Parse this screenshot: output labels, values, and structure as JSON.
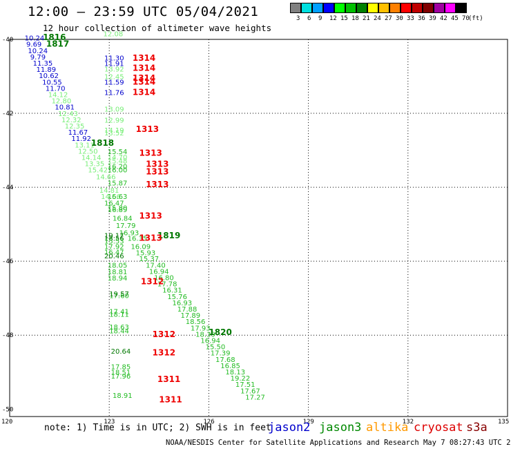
{
  "header": {
    "title": "12:00 – 23:59 UTC 05/04/2021",
    "subtitle": "12 hour collection of altimeter wave heights"
  },
  "legend": {
    "unit_label": "(ft)",
    "bins": [
      {
        "color": "#808080",
        "label": "3"
      },
      {
        "color": "#00e0e0",
        "label": "6"
      },
      {
        "color": "#00a0ff",
        "label": "9"
      },
      {
        "color": "#0000ff",
        "label": "12"
      },
      {
        "color": "#00ff00",
        "label": "15"
      },
      {
        "color": "#00c000",
        "label": "18"
      },
      {
        "color": "#008000",
        "label": "21"
      },
      {
        "color": "#ffff00",
        "label": "24"
      },
      {
        "color": "#ffc000",
        "label": "27"
      },
      {
        "color": "#ff8000",
        "label": "30"
      },
      {
        "color": "#ff0000",
        "label": "33"
      },
      {
        "color": "#c00000",
        "label": "36"
      },
      {
        "color": "#800000",
        "label": "39"
      },
      {
        "color": "#a000a0",
        "label": "42"
      },
      {
        "color": "#ff00ff",
        "label": "45"
      },
      {
        "color": "#000000",
        "label": "70"
      }
    ]
  },
  "map": {
    "lon_labels": [
      "120",
      "123",
      "126",
      "129",
      "132",
      "135"
    ],
    "lat_labels": [
      "-40",
      "-42",
      "-44",
      "-46",
      "-48",
      "-50"
    ],
    "lon_range": [
      120,
      135
    ],
    "lat_range": [
      -40,
      -50.2
    ],
    "gridlines_lon": [
      123,
      126,
      129,
      132
    ],
    "gridlines_lat": [
      -42,
      -44,
      -46,
      -48
    ]
  },
  "colors": {
    "jason2": "#0000cc",
    "jason3": "#009900",
    "light_green": "#77ee77",
    "mid_green": "#22bb22",
    "dark_green": "#007700",
    "red": "#ee0000"
  },
  "observations": [
    {
      "t": "10.24",
      "lon": 120.45,
      "lat": -40.03,
      "c": "jason2"
    },
    {
      "t": "9.69",
      "lon": 120.5,
      "lat": -40.2,
      "c": "jason2"
    },
    {
      "t": "10.24",
      "lon": 120.55,
      "lat": -40.37,
      "c": "jason2"
    },
    {
      "t": "9.79",
      "lon": 120.62,
      "lat": -40.54,
      "c": "jason2"
    },
    {
      "t": "11.35",
      "lon": 120.7,
      "lat": -40.71,
      "c": "jason2"
    },
    {
      "t": "11.89",
      "lon": 120.8,
      "lat": -40.88,
      "c": "jason2"
    },
    {
      "t": "10.62",
      "lon": 120.88,
      "lat": -41.05,
      "c": "jason2"
    },
    {
      "t": "10.55",
      "lon": 120.98,
      "lat": -41.22,
      "c": "jason2"
    },
    {
      "t": "11.70",
      "lon": 121.08,
      "lat": -41.39,
      "c": "jason2"
    },
    {
      "t": "14.12",
      "lon": 121.16,
      "lat": -41.56,
      "c": "light_green"
    },
    {
      "t": "12.80",
      "lon": 121.26,
      "lat": -41.73,
      "c": "light_green"
    },
    {
      "t": "10.81",
      "lon": 121.36,
      "lat": -41.9,
      "c": "jason2"
    },
    {
      "t": "12.43",
      "lon": 121.46,
      "lat": -42.07,
      "c": "light_green"
    },
    {
      "t": "12.32",
      "lon": 121.56,
      "lat": -42.24,
      "c": "light_green"
    },
    {
      "t": "12.35",
      "lon": 121.66,
      "lat": -42.41,
      "c": "light_green"
    },
    {
      "t": "11.67",
      "lon": 121.76,
      "lat": -42.58,
      "c": "jason2"
    },
    {
      "t": "11.92",
      "lon": 121.86,
      "lat": -42.75,
      "c": "jason2"
    },
    {
      "t": "13.11",
      "lon": 121.96,
      "lat": -42.92,
      "c": "light_green"
    },
    {
      "t": "12.50",
      "lon": 122.06,
      "lat": -43.09,
      "c": "light_green"
    },
    {
      "t": "14.14",
      "lon": 122.16,
      "lat": -43.26,
      "c": "light_green"
    },
    {
      "t": "13.35",
      "lon": 122.26,
      "lat": -43.43,
      "c": "light_green"
    },
    {
      "t": "15.42",
      "lon": 122.36,
      "lat": -43.6,
      "c": "light_green"
    },
    {
      "t": "12.08",
      "lon": 122.82,
      "lat": -39.92,
      "c": "light_green"
    },
    {
      "t": "11.30",
      "lon": 122.85,
      "lat": -40.57,
      "c": "jason2"
    },
    {
      "t": "11.91",
      "lon": 122.85,
      "lat": -40.72,
      "c": "jason2"
    },
    {
      "t": "13.92",
      "lon": 122.85,
      "lat": -40.87,
      "c": "light_green"
    },
    {
      "t": "12.45",
      "lon": 122.85,
      "lat": -41.07,
      "c": "light_green"
    },
    {
      "t": "11.59",
      "lon": 122.85,
      "lat": -41.22,
      "c": "jason2"
    },
    {
      "t": "11.76",
      "lon": 122.85,
      "lat": -41.5,
      "c": "jason2"
    },
    {
      "t": "13.09",
      "lon": 122.85,
      "lat": -41.95,
      "c": "light_green"
    },
    {
      "t": "12.99",
      "lon": 122.85,
      "lat": -42.25,
      "c": "light_green"
    },
    {
      "t": "14.19",
      "lon": 122.85,
      "lat": -42.52,
      "c": "light_green"
    },
    {
      "t": "13.52",
      "lon": 122.85,
      "lat": -42.6,
      "c": "light_green"
    },
    {
      "t": "15.54",
      "lon": 122.95,
      "lat": -43.1,
      "c": "mid_green"
    },
    {
      "t": "14.70",
      "lon": 122.95,
      "lat": -43.25,
      "c": "light_green"
    },
    {
      "t": "15.48",
      "lon": 122.95,
      "lat": -43.35,
      "c": "light_green"
    },
    {
      "t": "16.20",
      "lon": 122.95,
      "lat": -43.5,
      "c": "mid_green"
    },
    {
      "t": "16.00",
      "lon": 122.95,
      "lat": -43.6,
      "c": "mid_green"
    },
    {
      "t": "14.66",
      "lon": 122.6,
      "lat": -43.78,
      "c": "light_green"
    },
    {
      "t": "15.87",
      "lon": 122.95,
      "lat": -43.95,
      "c": "mid_green"
    },
    {
      "t": "14.81",
      "lon": 122.7,
      "lat": -44.15,
      "c": "light_green"
    },
    {
      "t": "14.56",
      "lon": 122.75,
      "lat": -44.32,
      "c": "light_green"
    },
    {
      "t": "16.63",
      "lon": 122.95,
      "lat": -44.32,
      "c": "mid_green"
    },
    {
      "t": "16.47",
      "lon": 122.85,
      "lat": -44.49,
      "c": "mid_green"
    },
    {
      "t": "15.80",
      "lon": 122.95,
      "lat": -44.62,
      "c": "mid_green"
    },
    {
      "t": "16.89",
      "lon": 122.95,
      "lat": -44.67,
      "c": "mid_green"
    },
    {
      "t": "16.84",
      "lon": 123.1,
      "lat": -44.9,
      "c": "mid_green"
    },
    {
      "t": "17.79",
      "lon": 123.2,
      "lat": -45.1,
      "c": "mid_green"
    },
    {
      "t": "16.93",
      "lon": 123.3,
      "lat": -45.3,
      "c": "mid_green"
    },
    {
      "t": "19.17",
      "lon": 122.85,
      "lat": -45.37,
      "c": "dark_green"
    },
    {
      "t": "16.35",
      "lon": 123.55,
      "lat": -45.45,
      "c": "mid_green"
    },
    {
      "t": "18.56",
      "lon": 122.85,
      "lat": -45.45,
      "c": "dark_green"
    },
    {
      "t": "15.53",
      "lon": 122.85,
      "lat": -45.52,
      "c": "mid_green"
    },
    {
      "t": "17.92",
      "lon": 122.85,
      "lat": -45.67,
      "c": "mid_green"
    },
    {
      "t": "16.09",
      "lon": 123.65,
      "lat": -45.67,
      "c": "mid_green"
    },
    {
      "t": "16.47",
      "lon": 122.85,
      "lat": -45.82,
      "c": "mid_green"
    },
    {
      "t": "15.93",
      "lon": 123.8,
      "lat": -45.84,
      "c": "mid_green"
    },
    {
      "t": "20.46",
      "lon": 122.85,
      "lat": -45.92,
      "c": "dark_green"
    },
    {
      "t": "15.37",
      "lon": 123.9,
      "lat": -46.0,
      "c": "mid_green"
    },
    {
      "t": "18.05",
      "lon": 122.95,
      "lat": -46.17,
      "c": "mid_green"
    },
    {
      "t": "17.40",
      "lon": 124.1,
      "lat": -46.17,
      "c": "mid_green"
    },
    {
      "t": "18.81",
      "lon": 122.95,
      "lat": -46.35,
      "c": "mid_green"
    },
    {
      "t": "16.94",
      "lon": 124.2,
      "lat": -46.34,
      "c": "mid_green"
    },
    {
      "t": "18.94",
      "lon": 122.95,
      "lat": -46.52,
      "c": "mid_green"
    },
    {
      "t": "16.80",
      "lon": 124.35,
      "lat": -46.51,
      "c": "mid_green"
    },
    {
      "t": "17.78",
      "lon": 124.45,
      "lat": -46.68,
      "c": "mid_green"
    },
    {
      "t": "16.31",
      "lon": 124.6,
      "lat": -46.85,
      "c": "mid_green"
    },
    {
      "t": "17.60",
      "lon": 123.0,
      "lat": -47.0,
      "c": "mid_green"
    },
    {
      "t": "19.57",
      "lon": 123.0,
      "lat": -46.95,
      "c": "dark_green"
    },
    {
      "t": "15.76",
      "lon": 124.75,
      "lat": -47.02,
      "c": "mid_green"
    },
    {
      "t": "16.93",
      "lon": 124.9,
      "lat": -47.19,
      "c": "mid_green"
    },
    {
      "t": "17.88",
      "lon": 125.05,
      "lat": -47.36,
      "c": "mid_green"
    },
    {
      "t": "17.41",
      "lon": 123.0,
      "lat": -47.43,
      "c": "mid_green"
    },
    {
      "t": "18.11",
      "lon": 123.0,
      "lat": -47.5,
      "c": "mid_green"
    },
    {
      "t": "17.89",
      "lon": 125.15,
      "lat": -47.53,
      "c": "mid_green"
    },
    {
      "t": "18.56",
      "lon": 125.3,
      "lat": -47.7,
      "c": "mid_green"
    },
    {
      "t": "17.93",
      "lon": 125.45,
      "lat": -47.87,
      "c": "mid_green"
    },
    {
      "t": "18.63",
      "lon": 123.0,
      "lat": -47.85,
      "c": "mid_green"
    },
    {
      "t": "18.44",
      "lon": 123.0,
      "lat": -47.95,
      "c": "mid_green"
    },
    {
      "t": "18.39",
      "lon": 125.6,
      "lat": -48.04,
      "c": "mid_green"
    },
    {
      "t": "16.94",
      "lon": 125.75,
      "lat": -48.21,
      "c": "mid_green"
    },
    {
      "t": "15.50",
      "lon": 125.9,
      "lat": -48.38,
      "c": "mid_green"
    },
    {
      "t": "17.39",
      "lon": 126.05,
      "lat": -48.55,
      "c": "mid_green"
    },
    {
      "t": "20.64",
      "lon": 123.05,
      "lat": -48.5,
      "c": "dark_green"
    },
    {
      "t": "17.68",
      "lon": 126.2,
      "lat": -48.72,
      "c": "mid_green"
    },
    {
      "t": "16.85",
      "lon": 126.35,
      "lat": -48.89,
      "c": "mid_green"
    },
    {
      "t": "17.85",
      "lon": 123.05,
      "lat": -48.92,
      "c": "mid_green"
    },
    {
      "t": "18.13",
      "lon": 126.5,
      "lat": -49.06,
      "c": "mid_green"
    },
    {
      "t": "18.51",
      "lon": 123.05,
      "lat": -49.07,
      "c": "mid_green"
    },
    {
      "t": "17.96",
      "lon": 123.05,
      "lat": -49.17,
      "c": "mid_green"
    },
    {
      "t": "19.22",
      "lon": 126.65,
      "lat": -49.23,
      "c": "mid_green"
    },
    {
      "t": "17.51",
      "lon": 126.8,
      "lat": -49.4,
      "c": "mid_green"
    },
    {
      "t": "17.67",
      "lon": 126.95,
      "lat": -49.57,
      "c": "mid_green"
    },
    {
      "t": "18.91",
      "lon": 123.1,
      "lat": -49.7,
      "c": "mid_green"
    },
    {
      "t": "17.27",
      "lon": 127.1,
      "lat": -49.74,
      "c": "mid_green"
    }
  ],
  "time_labels": [
    {
      "t": "1816",
      "lon": 121.0,
      "lat": -40.02,
      "c": "dark_green"
    },
    {
      "t": "1817",
      "lon": 121.1,
      "lat": -40.2,
      "c": "dark_green"
    },
    {
      "t": "1314",
      "lon": 123.7,
      "lat": -40.58,
      "c": "red"
    },
    {
      "t": "1314",
      "lon": 123.7,
      "lat": -40.85,
      "c": "red"
    },
    {
      "t": "1314",
      "lon": 123.7,
      "lat": -41.12,
      "c": "red"
    },
    {
      "t": "1314",
      "lon": 123.7,
      "lat": -41.22,
      "c": "red"
    },
    {
      "t": "1314",
      "lon": 123.7,
      "lat": -41.5,
      "c": "red"
    },
    {
      "t": "1313",
      "lon": 123.8,
      "lat": -42.5,
      "c": "red"
    },
    {
      "t": "1818",
      "lon": 122.45,
      "lat": -42.88,
      "c": "dark_green"
    },
    {
      "t": "1313",
      "lon": 123.9,
      "lat": -43.15,
      "c": "red"
    },
    {
      "t": "1313",
      "lon": 124.1,
      "lat": -43.45,
      "c": "red"
    },
    {
      "t": "1313",
      "lon": 124.1,
      "lat": -43.65,
      "c": "red"
    },
    {
      "t": "1313",
      "lon": 124.1,
      "lat": -44.0,
      "c": "red"
    },
    {
      "t": "1313",
      "lon": 123.9,
      "lat": -44.85,
      "c": "red"
    },
    {
      "t": "1819",
      "lon": 124.45,
      "lat": -45.38,
      "c": "dark_green"
    },
    {
      "t": "1313",
      "lon": 123.9,
      "lat": -45.45,
      "c": "red"
    },
    {
      "t": "1312",
      "lon": 123.95,
      "lat": -46.62,
      "c": "red"
    },
    {
      "t": "1820",
      "lon": 126.0,
      "lat": -48.0,
      "c": "dark_green"
    },
    {
      "t": "1312",
      "lon": 124.3,
      "lat": -48.05,
      "c": "red"
    },
    {
      "t": "1312",
      "lon": 124.3,
      "lat": -48.55,
      "c": "red"
    },
    {
      "t": "1311",
      "lon": 124.45,
      "lat": -49.27,
      "c": "red"
    },
    {
      "t": "1311",
      "lon": 124.5,
      "lat": -49.82,
      "c": "red"
    }
  ],
  "notes": {
    "note": "note:  1) Time is in UTC; 2) SWH is in feet",
    "jason2": "jason2",
    "jason3": "jason3",
    "altika": "altika",
    "cryosat": "cryosat",
    "s3a": "s3a",
    "footer": "NOAA/NESDIS Center for Satellite Applications and Research   May  7 08:27:43 UTC 2021"
  }
}
